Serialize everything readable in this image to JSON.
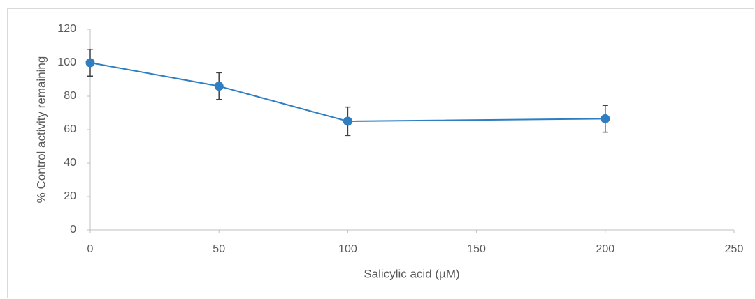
{
  "chart_data": {
    "type": "line",
    "x": [
      0,
      50,
      100,
      200
    ],
    "values": [
      100,
      86,
      65,
      66.5
    ],
    "errors": [
      8,
      8,
      8.5,
      8
    ],
    "color": "#2e7ec1",
    "error_color": "#404040",
    "x_label": "Salicylic acid (µM)",
    "y_label": "% Control activity remaining",
    "xlim": [
      0,
      250
    ],
    "xticks": [
      0,
      50,
      100,
      150,
      200,
      250
    ],
    "ylim": [
      0,
      120
    ],
    "yticks": [
      0,
      20,
      40,
      60,
      80,
      100,
      120
    ],
    "grid": false
  }
}
